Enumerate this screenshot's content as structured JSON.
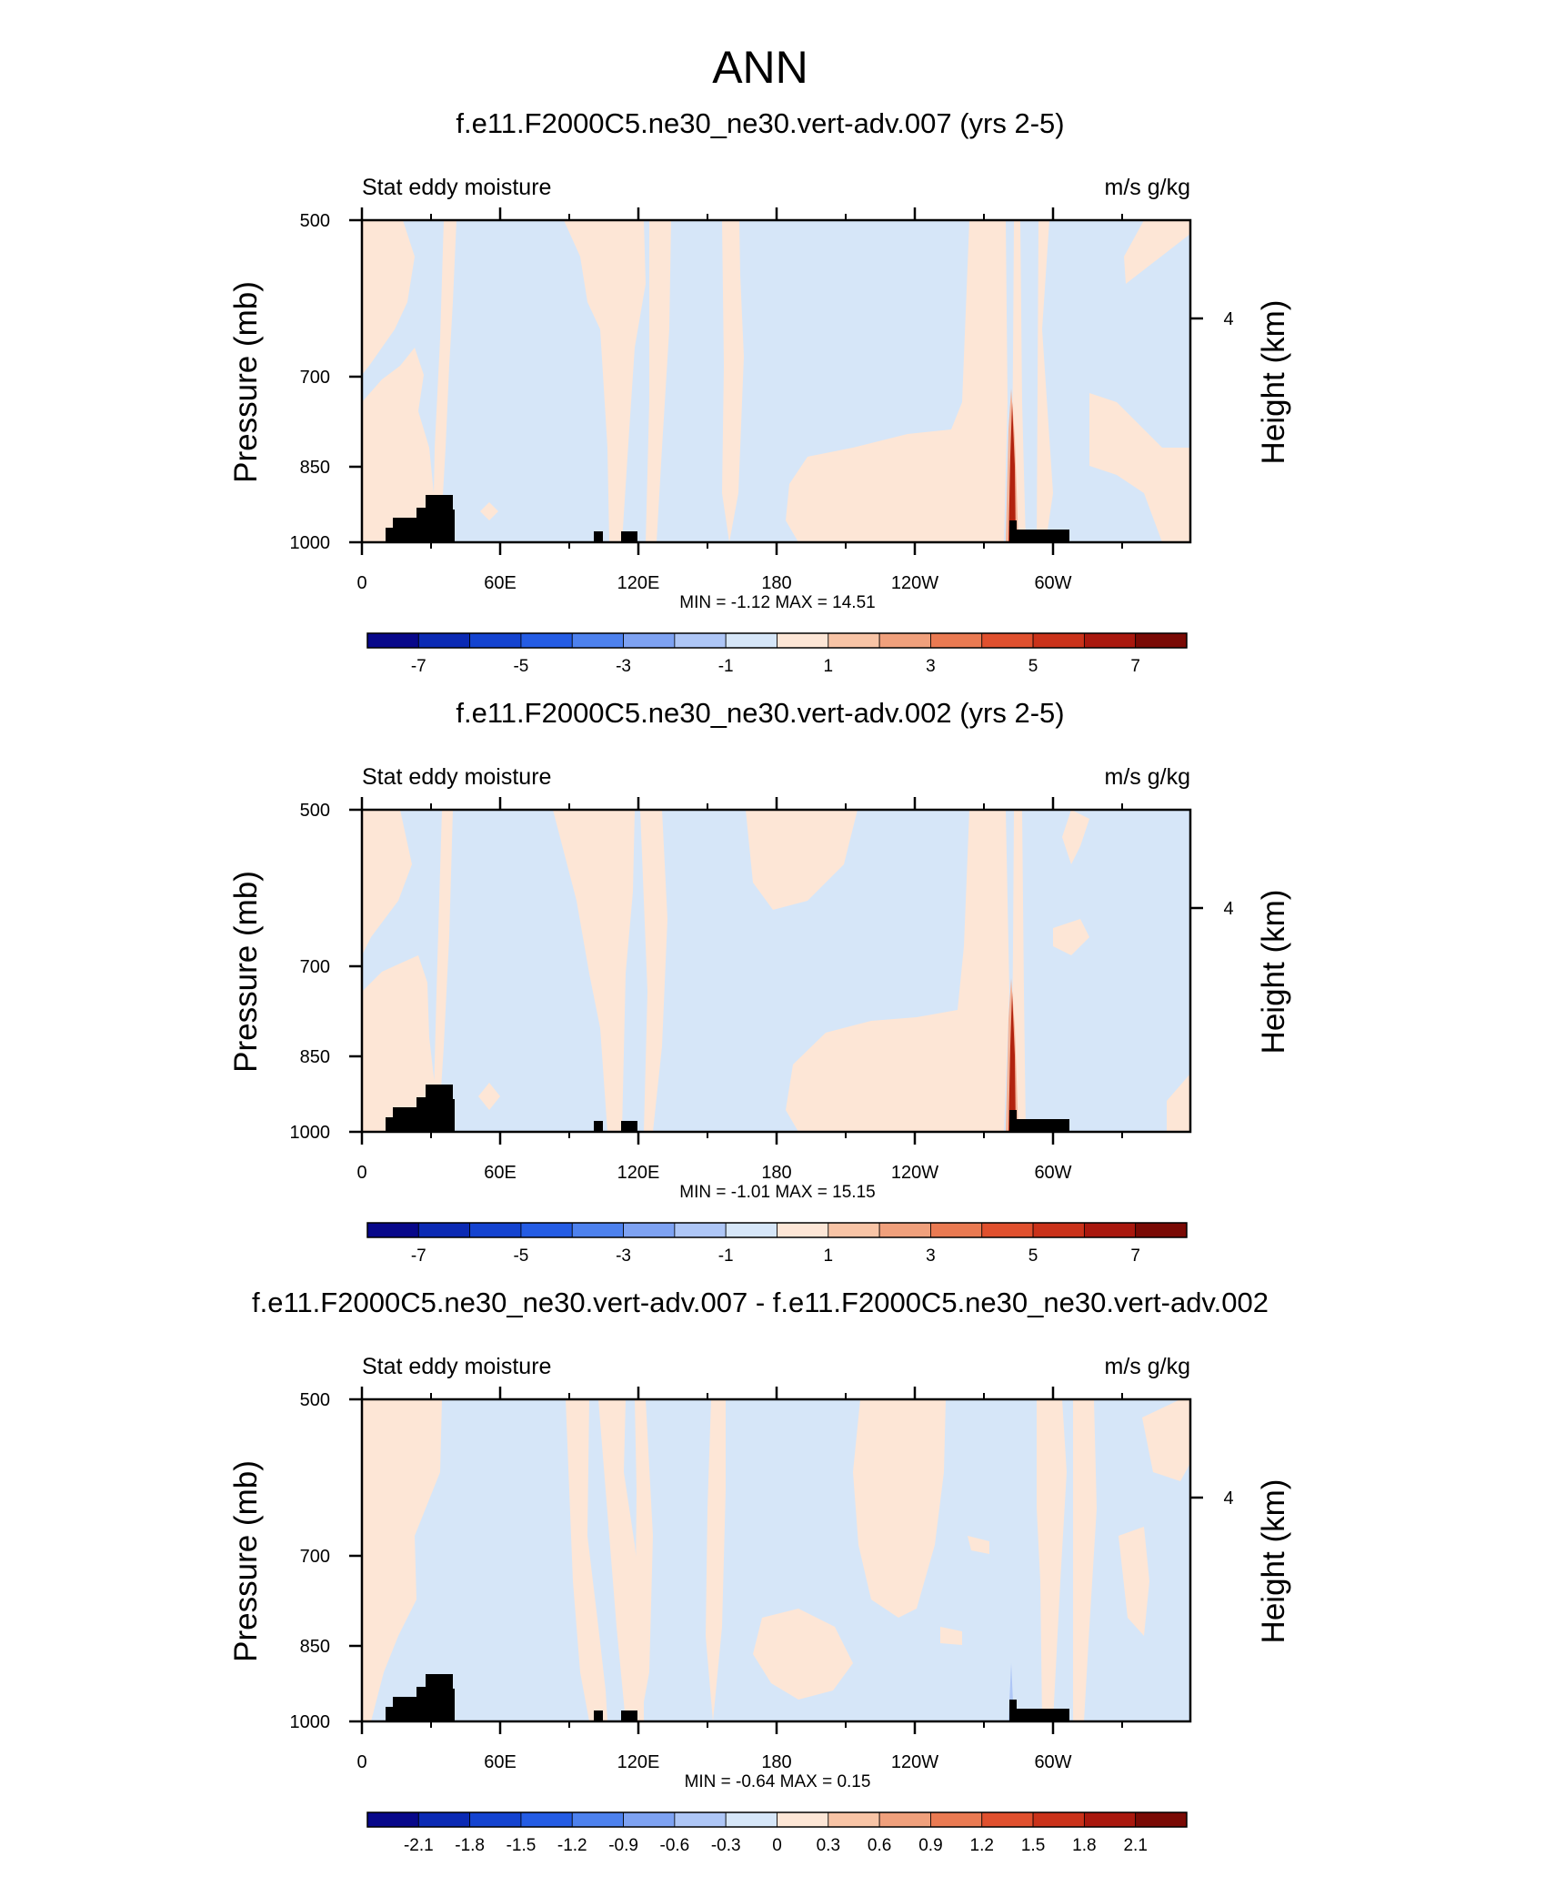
{
  "figure": {
    "title": "ANN"
  },
  "chart_data": [
    {
      "type": "heatmap",
      "title": "f.e11.F2000C5.ne30_ne30.vert-adv.007 (yrs 2-5)",
      "left_label": "Stat eddy moisture",
      "right_label": "m/s g/kg",
      "ylabel": "Pressure (mb)",
      "y2label": "Height (km)",
      "x_ticks": [
        "0",
        "60E",
        "120E",
        "180",
        "120W",
        "60W"
      ],
      "y_ticks": [
        "500",
        "700",
        "850",
        "1000"
      ],
      "y2_ticks": [
        "4"
      ],
      "stats": "MIN =  -1.12  MAX =  14.51",
      "colorbar_labels": [
        "-7",
        "-5",
        "-3",
        "-1",
        "1",
        "3",
        "5",
        "7"
      ],
      "min": -1.12,
      "max": 14.51
    },
    {
      "type": "heatmap",
      "title": "f.e11.F2000C5.ne30_ne30.vert-adv.002 (yrs 2-5)",
      "left_label": "Stat eddy moisture",
      "right_label": "m/s g/kg",
      "ylabel": "Pressure (mb)",
      "y2label": "Height (km)",
      "x_ticks": [
        "0",
        "60E",
        "120E",
        "180",
        "120W",
        "60W"
      ],
      "y_ticks": [
        "500",
        "700",
        "850",
        "1000"
      ],
      "y2_ticks": [
        "4"
      ],
      "stats": "MIN =  -1.01  MAX =  15.15",
      "colorbar_labels": [
        "-7",
        "-5",
        "-3",
        "-1",
        "1",
        "3",
        "5",
        "7"
      ],
      "min": -1.01,
      "max": 15.15
    },
    {
      "type": "heatmap",
      "title": "f.e11.F2000C5.ne30_ne30.vert-adv.007 - f.e11.F2000C5.ne30_ne30.vert-adv.002",
      "left_label": "Stat eddy moisture",
      "right_label": "m/s g/kg",
      "ylabel": "Pressure (mb)",
      "y2label": "Height (km)",
      "x_ticks": [
        "0",
        "60E",
        "120E",
        "180",
        "120W",
        "60W"
      ],
      "y_ticks": [
        "500",
        "700",
        "850",
        "1000"
      ],
      "y2_ticks": [
        "4"
      ],
      "stats": "MIN =  -0.64  MAX =  0.15",
      "colorbar_labels": [
        "-2.1",
        "-1.8",
        "-1.5",
        "-1.2",
        "-0.9",
        "-0.6",
        "-0.3",
        "0",
        "0.3",
        "0.6",
        "0.9",
        "1.2",
        "1.5",
        "1.8",
        "2.1"
      ],
      "min": -0.64,
      "max": 0.15
    }
  ],
  "colors": {
    "negative_light": "#d6e6f8",
    "positive_light": "#fde6d6",
    "positive_mid": "#f4b59a",
    "peak": "#b2230f",
    "terrain": "#000000",
    "colorbar": [
      "#08088a",
      "#0b2ab4",
      "#1443d0",
      "#245ce4",
      "#4d81ee",
      "#7ea2f2",
      "#aec6f6",
      "#d6e6f8",
      "#fde6d6",
      "#f8c4a6",
      "#f0a07c",
      "#ea7a52",
      "#e0502e",
      "#ca321a",
      "#a9180e",
      "#7a0a05"
    ],
    "colorbar_diff": [
      "#08088a",
      "#0b2ab4",
      "#1443d0",
      "#245ce4",
      "#4d81ee",
      "#7ea2f2",
      "#aec6f6",
      "#d6e6f8",
      "#fde6d6",
      "#f8c4a6",
      "#f0a07c",
      "#ea7a52",
      "#e0502e",
      "#ca321a",
      "#a9180e",
      "#7a0a05"
    ]
  }
}
